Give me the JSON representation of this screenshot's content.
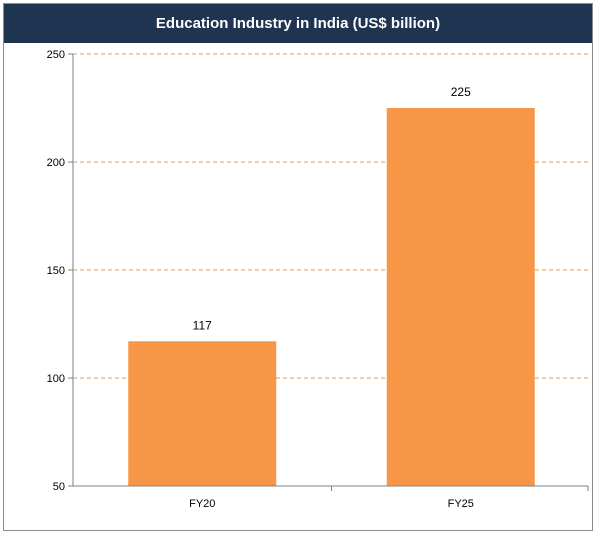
{
  "colors": {
    "title_background": "#1f3450",
    "title_text": "#ffffff",
    "bar": "#f79646",
    "gridline": "#e69a55",
    "axis": "#808080"
  },
  "chart_data": {
    "type": "bar",
    "title": "Education Industry in India (US$ billion)",
    "categories": [
      "FY20",
      "FY25"
    ],
    "values": [
      117,
      225
    ],
    "data_labels": [
      "117",
      "225"
    ],
    "yticks": [
      "50",
      "100",
      "150",
      "200",
      "250"
    ],
    "ylim": [
      50,
      250
    ],
    "xlabel": "",
    "ylabel": "",
    "grid": "horizontal dashed",
    "legend": "none"
  }
}
